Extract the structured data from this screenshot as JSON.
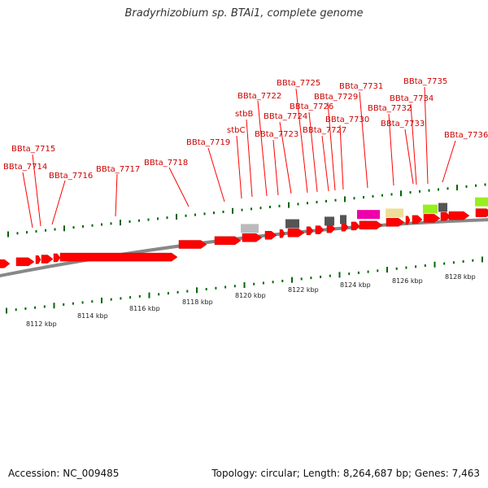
{
  "title": "Bradyrhizobium sp. BTAi1, complete genome",
  "footer": {
    "accession": "Accession: NC_009485",
    "topology": "Topology: circular; Length: 8,264,687 bp; Genes: 7,463"
  },
  "colors": {
    "gene_red": "#ff0000",
    "label_red": "#cc0000",
    "tick_green": "#006600",
    "backbone_gray": "#888888",
    "orange": "#ff8800",
    "magenta": "#ee00aa",
    "cream": "#eedd99",
    "lime": "#99ee22",
    "dark_gray": "#555555",
    "light_gray": "#bbbbbb"
  },
  "axis_labels": [
    "8112 kbp",
    "8114 kbp",
    "8116 kbp",
    "8118 kbp",
    "8120 kbp",
    "8122 kbp",
    "8124 kbp",
    "8126 kbp",
    "8128 kbp"
  ],
  "gene_labels": [
    "BBta_7714",
    "BBta_7715",
    "BBta_7716",
    "BBta_7717",
    "BBta_7718",
    "BBta_7719",
    "stbC",
    "stbB",
    "BBta_7722",
    "BBta_7723",
    "BBta_7724",
    "BBta_7725",
    "BBta_7726",
    "BBta_7727",
    "BBta_7729",
    "BBta_7730",
    "BBta_7731",
    "BBta_7732",
    "BBta_7733",
    "BBta_7734",
    "BBta_7735",
    "BBta_7736"
  ]
}
